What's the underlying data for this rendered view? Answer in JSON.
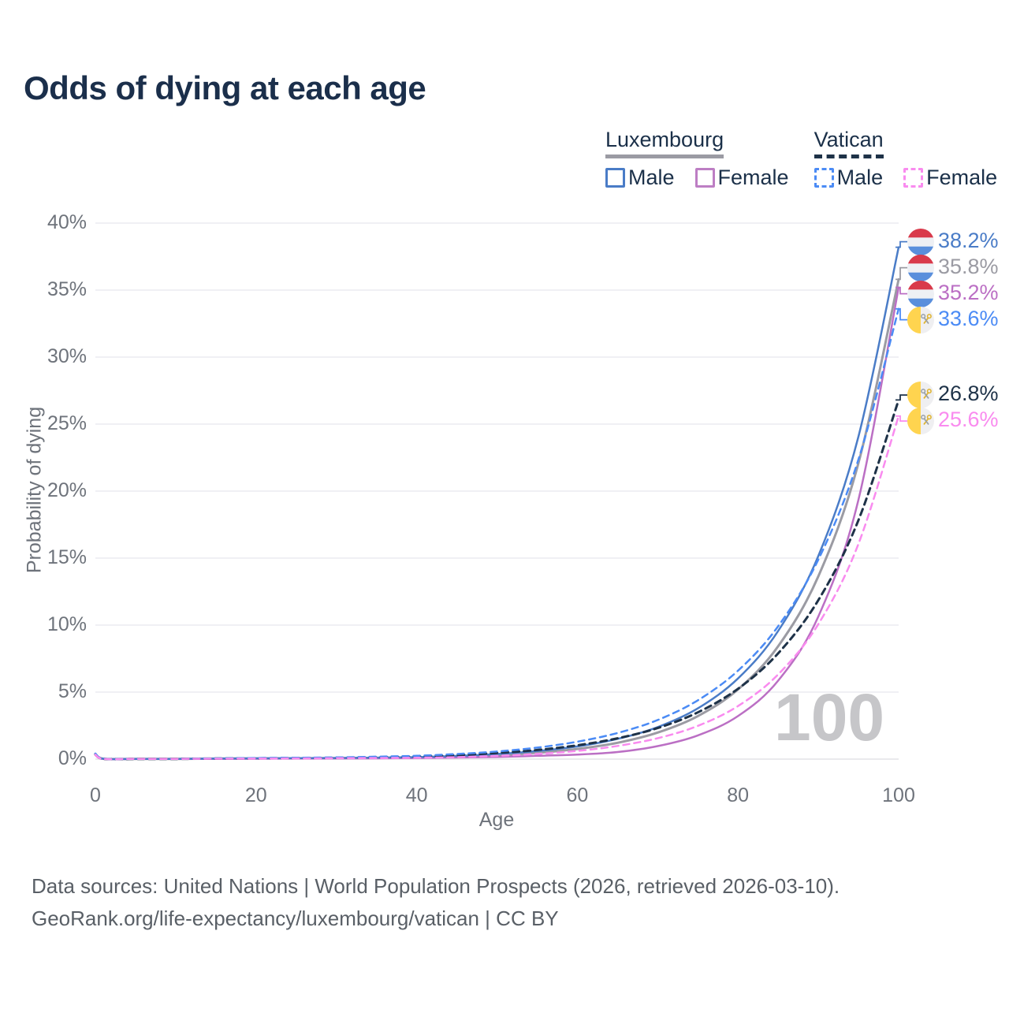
{
  "title": "Odds of dying at each age",
  "legend": {
    "groups": [
      {
        "id": "luxembourg",
        "label": "Luxembourg",
        "line_style": "solid",
        "line_color": "#9b9ba3",
        "items": [
          {
            "id": "lux-male",
            "label": "Male",
            "color": "#4a7cc7",
            "dashed": false
          },
          {
            "id": "lux-female",
            "label": "Female",
            "color": "#bd7ec4",
            "dashed": false
          }
        ]
      },
      {
        "id": "vatican",
        "label": "Vatican",
        "line_style": "dashed",
        "line_color": "#1e3248",
        "items": [
          {
            "id": "vat-male",
            "label": "Male",
            "color": "#4b8bf5",
            "dashed": true
          },
          {
            "id": "vat-female",
            "label": "Female",
            "color": "#f98bef",
            "dashed": true
          }
        ]
      }
    ]
  },
  "chart_data": {
    "type": "line",
    "title": "Odds of dying at each age",
    "xlabel": "Age",
    "ylabel": "Probability of dying",
    "xlim": [
      0,
      100
    ],
    "ylim": [
      0,
      40
    ],
    "x_ticks": [
      0,
      20,
      40,
      60,
      80,
      100
    ],
    "y_ticks": [
      0,
      5,
      10,
      15,
      20,
      25,
      30,
      35,
      40
    ],
    "y_tick_suffix": "%",
    "grid": "horizontal",
    "legend_position": "top-right",
    "watermark": "100",
    "grid_color": "#ececf0",
    "axis_text_color": "#6e737b",
    "series": [
      {
        "id": "lux-total",
        "name": "Luxembourg",
        "sex": "both",
        "country": "Luxembourg",
        "flag": "luxembourg",
        "color": "#9b9ba3",
        "dash": "solid",
        "width": 3,
        "end_value": 35.8,
        "end_label": "35.8%",
        "points": [
          [
            0,
            0.34
          ],
          [
            1,
            0.025
          ],
          [
            5,
            0.018
          ],
          [
            10,
            0.018
          ],
          [
            15,
            0.035
          ],
          [
            20,
            0.05
          ],
          [
            25,
            0.06
          ],
          [
            30,
            0.07
          ],
          [
            35,
            0.09
          ],
          [
            40,
            0.11
          ],
          [
            45,
            0.18
          ],
          [
            50,
            0.29
          ],
          [
            55,
            0.47
          ],
          [
            60,
            0.76
          ],
          [
            65,
            1.22
          ],
          [
            70,
            1.98
          ],
          [
            75,
            3.21
          ],
          [
            80,
            5.2
          ],
          [
            85,
            8.42
          ],
          [
            90,
            13.64
          ],
          [
            95,
            22.1
          ],
          [
            100,
            35.8
          ]
        ]
      },
      {
        "id": "lux-female",
        "name": "Luxembourg Female",
        "sex": "female",
        "country": "Luxembourg",
        "flag": "luxembourg",
        "color": "#bb6fc4",
        "dash": "solid",
        "width": 2.5,
        "end_value": 35.2,
        "end_label": "35.2%",
        "points": [
          [
            0,
            0.3
          ],
          [
            1,
            0.02
          ],
          [
            5,
            0.015
          ],
          [
            10,
            0.015
          ],
          [
            15,
            0.025
          ],
          [
            20,
            0.03
          ],
          [
            25,
            0.04
          ],
          [
            30,
            0.05
          ],
          [
            35,
            0.06
          ],
          [
            40,
            0.08
          ],
          [
            45,
            0.12
          ],
          [
            50,
            0.16
          ],
          [
            55,
            0.25
          ],
          [
            60,
            0.34
          ],
          [
            65,
            0.53
          ],
          [
            70,
            0.97
          ],
          [
            75,
            1.77
          ],
          [
            80,
            3.21
          ],
          [
            85,
            5.85
          ],
          [
            90,
            10.64
          ],
          [
            95,
            19.35
          ],
          [
            100,
            35.2
          ]
        ]
      },
      {
        "id": "lux-male",
        "name": "Luxembourg Male",
        "sex": "male",
        "country": "Luxembourg",
        "flag": "luxembourg",
        "color": "#4a7cc7",
        "dash": "solid",
        "width": 2.5,
        "end_value": 38.2,
        "end_label": "38.2%",
        "points": [
          [
            0,
            0.38
          ],
          [
            1,
            0.03
          ],
          [
            5,
            0.02
          ],
          [
            10,
            0.02
          ],
          [
            15,
            0.04
          ],
          [
            20,
            0.06
          ],
          [
            25,
            0.07
          ],
          [
            30,
            0.08
          ],
          [
            35,
            0.11
          ],
          [
            40,
            0.15
          ],
          [
            45,
            0.24
          ],
          [
            50,
            0.38
          ],
          [
            55,
            0.6
          ],
          [
            60,
            0.95
          ],
          [
            65,
            1.51
          ],
          [
            70,
            2.39
          ],
          [
            75,
            3.79
          ],
          [
            80,
            6.02
          ],
          [
            85,
            9.56
          ],
          [
            90,
            15.16
          ],
          [
            95,
            24.07
          ],
          [
            100,
            38.2
          ]
        ]
      },
      {
        "id": "vat-total",
        "name": "Vatican",
        "sex": "both",
        "country": "Vatican",
        "flag": "vatican",
        "color": "#1e3248",
        "dash": "dashed",
        "width": 3,
        "end_value": 26.8,
        "end_label": "26.8%",
        "points": [
          [
            0,
            0.38
          ],
          [
            1,
            0.025
          ],
          [
            5,
            0.018
          ],
          [
            10,
            0.018
          ],
          [
            15,
            0.04
          ],
          [
            20,
            0.06
          ],
          [
            25,
            0.08
          ],
          [
            30,
            0.1
          ],
          [
            35,
            0.14
          ],
          [
            40,
            0.2
          ],
          [
            45,
            0.3
          ],
          [
            50,
            0.46
          ],
          [
            55,
            0.68
          ],
          [
            60,
            1.03
          ],
          [
            65,
            1.55
          ],
          [
            70,
            2.32
          ],
          [
            75,
            3.49
          ],
          [
            80,
            5.25
          ],
          [
            85,
            7.89
          ],
          [
            90,
            11.86
          ],
          [
            95,
            17.83
          ],
          [
            100,
            26.8
          ]
        ]
      },
      {
        "id": "vat-male",
        "name": "Vatican Male",
        "sex": "male",
        "country": "Vatican",
        "flag": "vatican",
        "color": "#4b8bf5",
        "dash": "dashed",
        "width": 2.5,
        "end_value": 33.6,
        "end_label": "33.6%",
        "points": [
          [
            0,
            0.42
          ],
          [
            1,
            0.03
          ],
          [
            5,
            0.02
          ],
          [
            10,
            0.02
          ],
          [
            15,
            0.05
          ],
          [
            20,
            0.08
          ],
          [
            25,
            0.1
          ],
          [
            30,
            0.13
          ],
          [
            35,
            0.18
          ],
          [
            40,
            0.25
          ],
          [
            45,
            0.38
          ],
          [
            50,
            0.57
          ],
          [
            55,
            0.86
          ],
          [
            60,
            1.3
          ],
          [
            65,
            1.95
          ],
          [
            70,
            2.92
          ],
          [
            75,
            4.39
          ],
          [
            80,
            6.6
          ],
          [
            85,
            9.91
          ],
          [
            90,
            14.89
          ],
          [
            95,
            22.36
          ],
          [
            100,
            33.6
          ]
        ]
      },
      {
        "id": "vat-female",
        "name": "Vatican Female",
        "sex": "female",
        "country": "Vatican",
        "flag": "vatican",
        "color": "#f98bef",
        "dash": "dashed",
        "width": 2.5,
        "end_value": 25.6,
        "end_label": "25.6%",
        "points": [
          [
            0,
            0.33
          ],
          [
            1,
            0.02
          ],
          [
            5,
            0.015
          ],
          [
            10,
            0.015
          ],
          [
            15,
            0.03
          ],
          [
            20,
            0.04
          ],
          [
            25,
            0.05
          ],
          [
            30,
            0.07
          ],
          [
            35,
            0.08
          ],
          [
            40,
            0.1
          ],
          [
            45,
            0.15
          ],
          [
            50,
            0.24
          ],
          [
            55,
            0.38
          ],
          [
            60,
            0.61
          ],
          [
            65,
            0.98
          ],
          [
            70,
            1.56
          ],
          [
            75,
            2.48
          ],
          [
            80,
            3.96
          ],
          [
            85,
            6.32
          ],
          [
            90,
            10.07
          ],
          [
            95,
            16.06
          ],
          [
            100,
            25.6
          ]
        ]
      }
    ]
  },
  "flags": {
    "luxembourg": {
      "red": "#d93a4b",
      "white": "#eef0f4",
      "blue": "#5a8fdc"
    },
    "vatican": {
      "yellow": "#ffd44f",
      "white": "#efeff1",
      "key_gold": "#dfb32c",
      "key_silver": "#99a0a8"
    }
  },
  "footer": {
    "line1": "Data sources: United Nations | World Population Prospects (2026, retrieved 2026-03-10).",
    "line2": "GeoRank.org/life-expectancy/luxembourg/vatican | CC BY"
  }
}
